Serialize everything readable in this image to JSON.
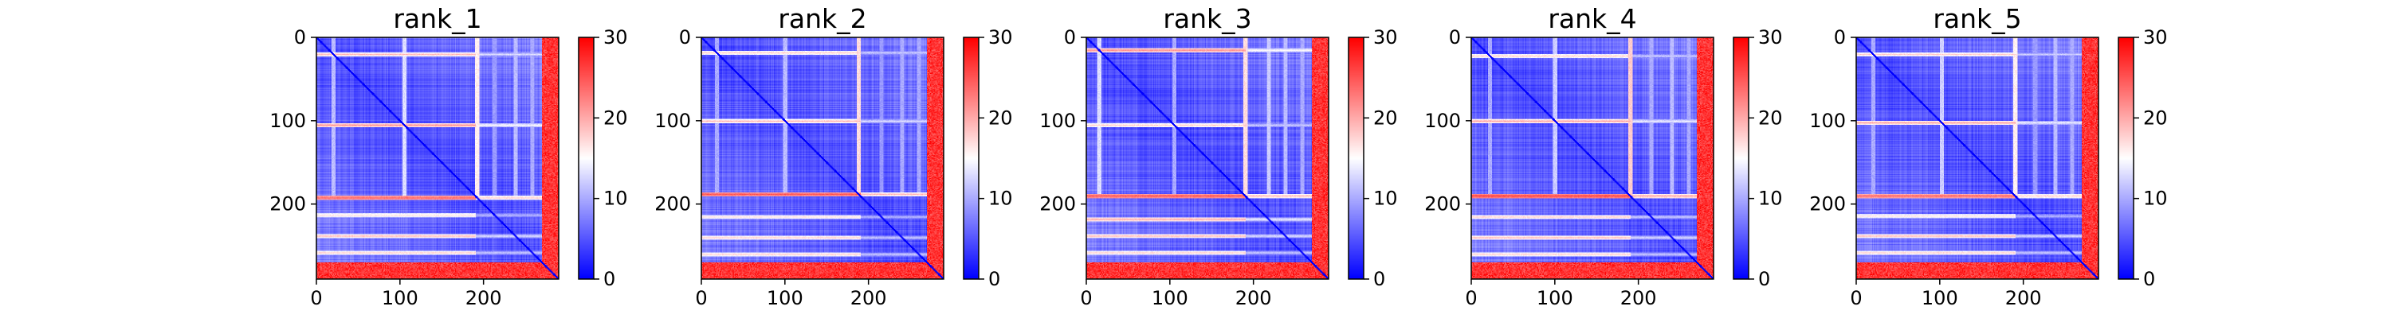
{
  "figure": {
    "panels": [
      "rank_1",
      "rank_2",
      "rank_3",
      "rank_4",
      "rank_5"
    ]
  },
  "chart_data": [
    {
      "type": "heatmap",
      "title": "rank_1",
      "x_ticks": [
        0,
        100,
        200
      ],
      "y_ticks": [
        0,
        100,
        200
      ],
      "xlim": [
        0,
        290
      ],
      "ylim": [
        290,
        0
      ],
      "colorbar": {
        "ticks": [
          0,
          10,
          20,
          30
        ],
        "range": [
          0,
          30
        ],
        "colors": [
          "#0000ff",
          "#ffffff",
          "#ff0000"
        ]
      },
      "features": {
        "bright_rows": [
          {
            "y": 20,
            "v": 18
          },
          {
            "y": 105,
            "v": 20
          },
          {
            "y": 192,
            "v": 23
          },
          {
            "y": 213,
            "v": 16
          },
          {
            "y": 238,
            "v": 18
          },
          {
            "y": 258,
            "v": 17
          }
        ],
        "near_edge_band_start": 270,
        "seed": 1
      }
    },
    {
      "type": "heatmap",
      "title": "rank_2",
      "x_ticks": [
        0,
        100,
        200
      ],
      "y_ticks": [
        0,
        100,
        200
      ],
      "xlim": [
        0,
        290
      ],
      "ylim": [
        290,
        0
      ],
      "colorbar": {
        "ticks": [
          0,
          10,
          20,
          30
        ],
        "range": [
          0,
          30
        ],
        "colors": [
          "#0000ff",
          "#ffffff",
          "#ff0000"
        ]
      },
      "features": {
        "bright_rows": [
          {
            "y": 18,
            "v": 17
          },
          {
            "y": 100,
            "v": 18
          },
          {
            "y": 188,
            "v": 24
          },
          {
            "y": 215,
            "v": 16
          },
          {
            "y": 240,
            "v": 17
          },
          {
            "y": 260,
            "v": 17
          }
        ],
        "near_edge_band_start": 270,
        "seed": 2
      }
    },
    {
      "type": "heatmap",
      "title": "rank_3",
      "x_ticks": [
        0,
        100,
        200
      ],
      "y_ticks": [
        0,
        100,
        200
      ],
      "xlim": [
        0,
        290
      ],
      "ylim": [
        290,
        0
      ],
      "colorbar": {
        "ticks": [
          0,
          10,
          20,
          30
        ],
        "range": [
          0,
          30
        ],
        "colors": [
          "#0000ff",
          "#ffffff",
          "#ff0000"
        ]
      },
      "features": {
        "bright_rows": [
          {
            "y": 15,
            "v": 20
          },
          {
            "y": 105,
            "v": 17
          },
          {
            "y": 190,
            "v": 24
          },
          {
            "y": 218,
            "v": 19
          },
          {
            "y": 238,
            "v": 18
          },
          {
            "y": 258,
            "v": 17
          }
        ],
        "near_edge_band_start": 270,
        "seed": 3
      }
    },
    {
      "type": "heatmap",
      "title": "rank_4",
      "x_ticks": [
        0,
        100,
        200
      ],
      "y_ticks": [
        0,
        100,
        200
      ],
      "xlim": [
        0,
        290
      ],
      "ylim": [
        290,
        0
      ],
      "colorbar": {
        "ticks": [
          0,
          10,
          20,
          30
        ],
        "range": [
          0,
          30
        ],
        "colors": [
          "#0000ff",
          "#ffffff",
          "#ff0000"
        ]
      },
      "features": {
        "bright_rows": [
          {
            "y": 22,
            "v": 17
          },
          {
            "y": 100,
            "v": 19
          },
          {
            "y": 190,
            "v": 25
          },
          {
            "y": 215,
            "v": 17
          },
          {
            "y": 240,
            "v": 18
          },
          {
            "y": 260,
            "v": 17
          }
        ],
        "near_edge_band_start": 270,
        "seed": 4
      }
    },
    {
      "type": "heatmap",
      "title": "rank_5",
      "x_ticks": [
        0,
        100,
        200
      ],
      "y_ticks": [
        0,
        100,
        200
      ],
      "xlim": [
        0,
        290
      ],
      "ylim": [
        290,
        0
      ],
      "colorbar": {
        "ticks": [
          0,
          10,
          20,
          30
        ],
        "range": [
          0,
          30
        ],
        "colors": [
          "#0000ff",
          "#ffffff",
          "#ff0000"
        ]
      },
      "features": {
        "bright_rows": [
          {
            "y": 20,
            "v": 17
          },
          {
            "y": 102,
            "v": 19
          },
          {
            "y": 190,
            "v": 23
          },
          {
            "y": 214,
            "v": 16
          },
          {
            "y": 238,
            "v": 18
          },
          {
            "y": 258,
            "v": 17
          }
        ],
        "near_edge_band_start": 270,
        "seed": 5
      }
    }
  ]
}
